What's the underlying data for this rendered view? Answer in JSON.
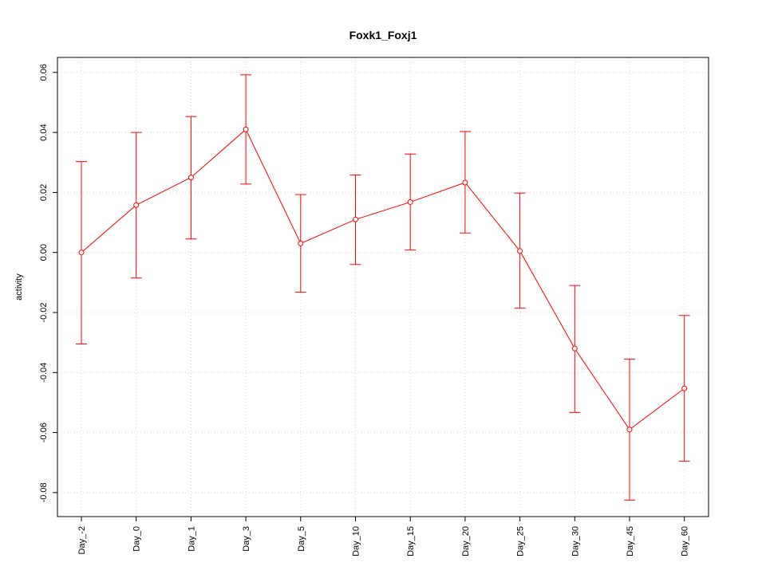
{
  "chart_data": {
    "type": "line",
    "title": "Foxk1_Foxj1",
    "xlabel": "",
    "ylabel": "activity",
    "ylim": [
      -0.088,
      0.065
    ],
    "y_ticks": [
      -0.08,
      -0.06,
      -0.04,
      -0.02,
      0.0,
      0.02,
      0.04,
      0.06
    ],
    "y_tick_labels": [
      "-0.08",
      "-0.06",
      "-0.04",
      "-0.02",
      "0.00",
      "0.02",
      "0.04",
      "0.06"
    ],
    "categories": [
      "Day_-2",
      "Day_0",
      "Day_1",
      "Day_3",
      "Day_5",
      "Day_10",
      "Day_15",
      "Day_20",
      "Day_25",
      "Day_30",
      "Day_45",
      "Day_60"
    ],
    "grid": true,
    "color": "#ff0000",
    "series": [
      {
        "values": [
          0.0,
          0.0158,
          0.025,
          0.041,
          0.003,
          0.011,
          0.0168,
          0.0233,
          0.0005,
          -0.032,
          -0.059,
          -0.0453
        ],
        "lower": [
          -0.0305,
          -0.0085,
          0.0045,
          0.0228,
          -0.0132,
          -0.004,
          0.0008,
          0.0065,
          -0.0185,
          -0.0533,
          -0.0825,
          -0.0695
        ],
        "upper": [
          0.0303,
          0.04,
          0.0453,
          0.0592,
          0.0193,
          0.0258,
          0.0328,
          0.0403,
          0.0198,
          -0.011,
          -0.0355,
          -0.021
        ]
      }
    ]
  }
}
